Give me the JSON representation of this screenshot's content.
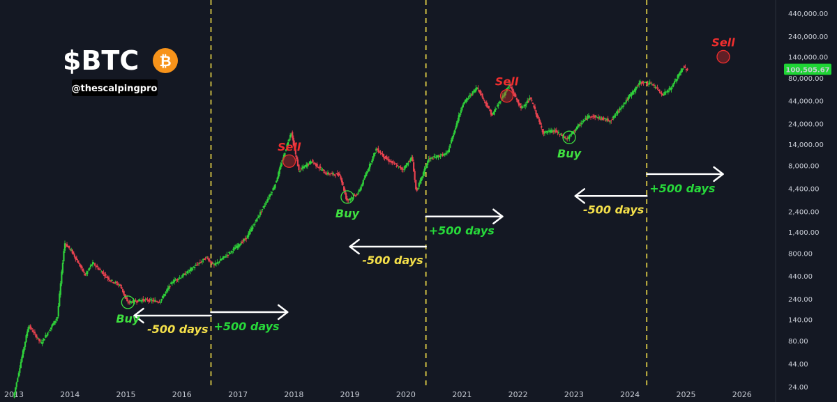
{
  "header": {
    "title": "$BTC",
    "handle": "@thescalpingpro",
    "logo_icon": "bitcoin-icon",
    "logo_color": "#f7931a",
    "logo_symbol": "₿"
  },
  "colors": {
    "background": "#141823",
    "up": "#2fcf3a",
    "down": "#e8424f",
    "buy": "#3fe03f",
    "sell": "#ef2e2e",
    "divider": "#f5e04a",
    "plus_days": "#27d93a",
    "minus_days": "#f5e04a",
    "arrow": "#ffffff",
    "price_tag": "#1fd435"
  },
  "chart_data": {
    "type": "candlestick",
    "title": "$BTC",
    "y_scale": "log",
    "ylim": [
      16,
      600000
    ],
    "xlim": [
      "2013-01-01",
      "2026-06-01"
    ],
    "x_ticks": [
      "2013",
      "2014",
      "2015",
      "2016",
      "2017",
      "2018",
      "2019",
      "2020",
      "2021",
      "2022",
      "2023",
      "2024",
      "2025",
      "2026"
    ],
    "y_ticks": [
      {
        "value": 440000,
        "label": "440,000.00"
      },
      {
        "value": 240000,
        "label": "240,000.00"
      },
      {
        "value": 140000,
        "label": "140,000.00"
      },
      {
        "value": 80000,
        "label": "80,000.00"
      },
      {
        "value": 44000,
        "label": "44,000.00"
      },
      {
        "value": 24000,
        "label": "24,000.00"
      },
      {
        "value": 14000,
        "label": "14,000.00"
      },
      {
        "value": 8000,
        "label": "8,000.00"
      },
      {
        "value": 4400,
        "label": "4,400.00"
      },
      {
        "value": 2400,
        "label": "2,400.00"
      },
      {
        "value": 1400,
        "label": "1,400.00"
      },
      {
        "value": 800,
        "label": "800.00"
      },
      {
        "value": 440,
        "label": "440.00"
      },
      {
        "value": 240,
        "label": "240.00"
      },
      {
        "value": 140,
        "label": "140.00"
      },
      {
        "value": 80,
        "label": "80.00"
      },
      {
        "value": 44,
        "label": "44.00"
      },
      {
        "value": 24,
        "label": "24.00"
      }
    ],
    "current_price": {
      "value": 100505.67,
      "label": "100,505.67"
    },
    "price_path": [
      [
        "2013-01-01",
        18
      ],
      [
        "2013-04-10",
        120
      ],
      [
        "2013-07-01",
        75
      ],
      [
        "2013-10-15",
        150
      ],
      [
        "2013-12-01",
        1050
      ],
      [
        "2014-01-15",
        850
      ],
      [
        "2014-04-15",
        450
      ],
      [
        "2014-06-01",
        620
      ],
      [
        "2014-09-20",
        400
      ],
      [
        "2014-12-01",
        340
      ],
      [
        "2015-01-14",
        220
      ],
      [
        "2015-05-01",
        235
      ],
      [
        "2015-08-15",
        225
      ],
      [
        "2015-11-05",
        380
      ],
      [
        "2016-01-01",
        430
      ],
      [
        "2016-06-15",
        720
      ],
      [
        "2016-08-01",
        580
      ],
      [
        "2016-12-31",
        960
      ],
      [
        "2017-03-01",
        1200
      ],
      [
        "2017-06-15",
        2600
      ],
      [
        "2017-09-01",
        4700
      ],
      [
        "2017-12-17",
        19500
      ],
      [
        "2018-02-06",
        7000
      ],
      [
        "2018-05-01",
        9000
      ],
      [
        "2018-08-01",
        6500
      ],
      [
        "2018-11-01",
        6300
      ],
      [
        "2018-12-15",
        3200
      ],
      [
        "2019-03-01",
        3900
      ],
      [
        "2019-06-26",
        12500
      ],
      [
        "2019-09-01",
        9500
      ],
      [
        "2019-12-15",
        7200
      ],
      [
        "2020-02-15",
        10000
      ],
      [
        "2020-03-12",
        4000
      ],
      [
        "2020-06-01",
        9500
      ],
      [
        "2020-10-01",
        11000
      ],
      [
        "2021-01-08",
        40000
      ],
      [
        "2021-04-14",
        63000
      ],
      [
        "2021-07-20",
        30000
      ],
      [
        "2021-11-10",
        67000
      ],
      [
        "2022-01-24",
        36000
      ],
      [
        "2022-03-28",
        47000
      ],
      [
        "2022-06-18",
        19000
      ],
      [
        "2022-09-01",
        20000
      ],
      [
        "2022-11-21",
        16000
      ],
      [
        "2023-01-15",
        21000
      ],
      [
        "2023-04-15",
        30000
      ],
      [
        "2023-09-01",
        26000
      ],
      [
        "2023-12-01",
        42000
      ],
      [
        "2024-03-14",
        72000
      ],
      [
        "2024-06-01",
        68000
      ],
      [
        "2024-08-05",
        52000
      ],
      [
        "2024-10-01",
        62000
      ],
      [
        "2024-12-17",
        106000
      ],
      [
        "2025-01-10",
        100505.67
      ]
    ],
    "cycle_dividers": [
      "2016-07-09",
      "2020-05-11",
      "2024-04-20"
    ],
    "signals": [
      {
        "type": "buy",
        "label": "Buy",
        "date": "2015-01-14",
        "price": 220
      },
      {
        "type": "sell",
        "label": "Sell",
        "date": "2017-12-01",
        "price": 9000
      },
      {
        "type": "buy",
        "label": "Buy",
        "date": "2018-12-15",
        "price": 3500
      },
      {
        "type": "sell",
        "label": "Sell",
        "date": "2021-10-20",
        "price": 50000
      },
      {
        "type": "buy",
        "label": "Buy",
        "date": "2022-12-01",
        "price": 16800
      },
      {
        "type": "sell",
        "label": "Sell",
        "date": "2025-09-01",
        "price": 140000
      }
    ],
    "annotations": [
      {
        "label": "-500 days",
        "kind": "minus",
        "from": "2016-07-09",
        "to": "2015-02-25",
        "price": 155
      },
      {
        "label": "+500 days",
        "kind": "plus",
        "from": "2016-07-09",
        "to": "2017-11-20",
        "price": 170
      },
      {
        "label": "-500 days",
        "kind": "minus",
        "from": "2020-05-11",
        "to": "2019-01-01",
        "price": 950
      },
      {
        "label": "+500 days",
        "kind": "plus",
        "from": "2020-05-11",
        "to": "2021-09-22",
        "price": 2100
      },
      {
        "label": "-500 days",
        "kind": "minus",
        "from": "2024-04-20",
        "to": "2023-01-10",
        "price": 3600
      },
      {
        "label": "+500 days",
        "kind": "plus",
        "from": "2024-04-20",
        "to": "2025-08-30",
        "price": 6400
      }
    ]
  }
}
